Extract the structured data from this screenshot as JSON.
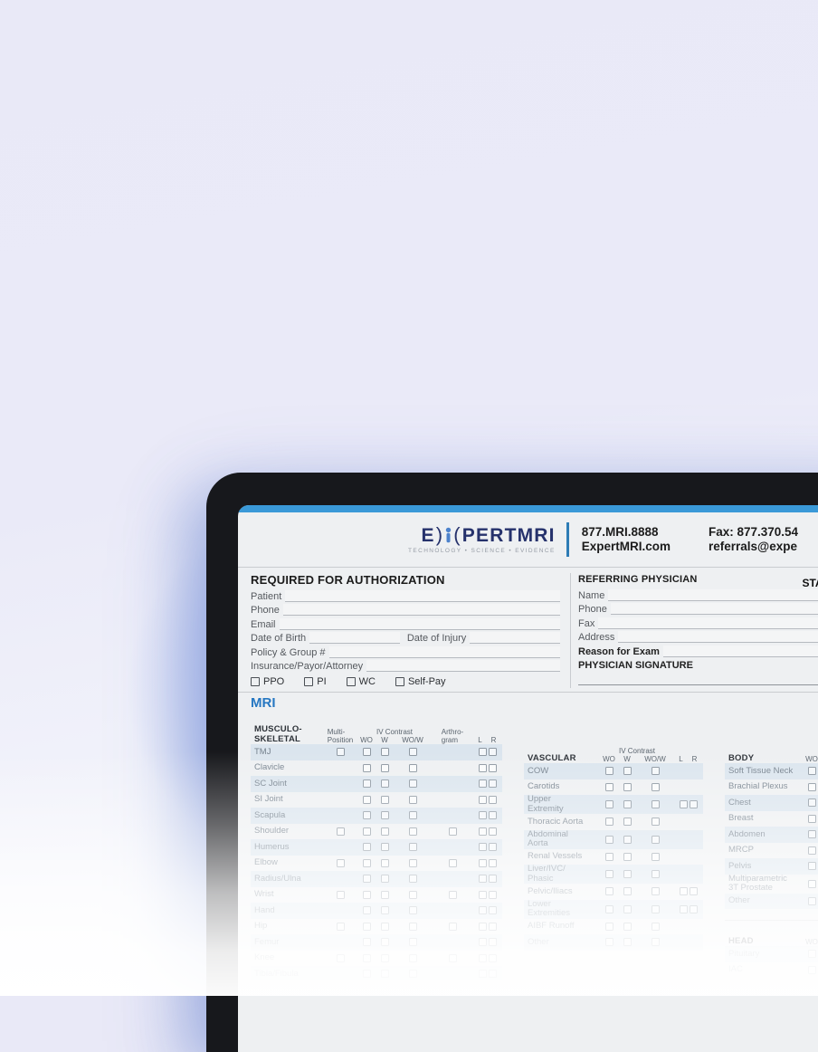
{
  "colors": {
    "top_bar": "#3a99d8",
    "brand_navy": "#26326c",
    "mri_blue": "#2677c2",
    "stripe": "#dbe5ee"
  },
  "header": {
    "logo_text_start": "E",
    "logo_paren_left": ")",
    "logo_paren_right": "(",
    "logo_text_end": "PERTMRI",
    "tagline": "TECHNOLOGY • SCIENCE • EVIDENCE",
    "phone": "877.MRI.8888",
    "website": "ExpertMRI.com",
    "fax": "Fax: 877.370.54",
    "email": "referrals@expe"
  },
  "authorization": {
    "title": "REQUIRED FOR AUTHORIZATION",
    "field_patient": "Patient",
    "field_phone": "Phone",
    "field_email": "Email",
    "field_dob": "Date of Birth",
    "field_doi": "Date of Injury",
    "field_policy": "Policy & Group #",
    "field_insurance": "Insurance/Payor/Attorney",
    "options": [
      "PPO",
      "PI",
      "WC",
      "Self-Pay"
    ]
  },
  "physician": {
    "title": "REFERRING PHYSICIAN",
    "stat": "STAT",
    "field_name": "Name",
    "field_phone": "Phone",
    "field_fax": "Fax",
    "field_address": "Address",
    "reason": "Reason for Exam",
    "signature": "PHYSICIAN SIGNATURE"
  },
  "mri": {
    "heading": "MRI",
    "musculoskeletal": {
      "title": "MUSCULO-\nSKELETAL",
      "iv_contrast": "IV Contrast",
      "col_mp": "Multi-\nPosition",
      "col_wo": "WO",
      "col_w": "W",
      "col_wow": "WO/W",
      "col_arthro": "Arthro-\ngram",
      "col_l": "L",
      "col_r": "R",
      "rows": [
        {
          "label": "TMJ",
          "checks": [
            "mp",
            "wo",
            "w",
            "wow",
            "lr"
          ]
        },
        {
          "label": "Clavicle",
          "checks": [
            "wo",
            "w",
            "wow",
            "lr"
          ]
        },
        {
          "label": "SC Joint",
          "checks": [
            "wo",
            "w",
            "wow",
            "lr"
          ]
        },
        {
          "label": "SI Joint",
          "checks": [
            "wo",
            "w",
            "wow",
            "lr"
          ]
        },
        {
          "label": "Scapula",
          "checks": [
            "wo",
            "w",
            "wow",
            "lr"
          ]
        },
        {
          "label": "Shoulder",
          "checks": [
            "mp",
            "wo",
            "w",
            "wow",
            "arthro",
            "lr"
          ]
        },
        {
          "label": "Humerus",
          "checks": [
            "wo",
            "w",
            "wow",
            "lr"
          ]
        },
        {
          "label": "Elbow",
          "checks": [
            "mp",
            "wo",
            "w",
            "wow",
            "arthro",
            "lr"
          ]
        },
        {
          "label": "Radius/Ulna",
          "checks": [
            "wo",
            "w",
            "wow",
            "lr"
          ]
        },
        {
          "label": "Wrist",
          "checks": [
            "mp",
            "wo",
            "w",
            "wow",
            "arthro",
            "lr"
          ]
        },
        {
          "label": "Hand",
          "checks": [
            "wo",
            "w",
            "wow",
            "lr"
          ]
        },
        {
          "label": "Hip",
          "checks": [
            "mp",
            "wo",
            "w",
            "wow",
            "arthro",
            "lr"
          ]
        },
        {
          "label": "Femur",
          "checks": [
            "wo",
            "w",
            "wow",
            "lr"
          ]
        },
        {
          "label": "Knee",
          "checks": [
            "mp",
            "wo",
            "w",
            "wow",
            "arthro",
            "lr"
          ]
        },
        {
          "label": "Tibia/Fibula",
          "checks": [
            "wo",
            "w",
            "wow",
            "lr"
          ]
        }
      ]
    },
    "vascular": {
      "title": "VASCULAR",
      "iv_contrast": "IV Contrast",
      "col_wo": "WO",
      "col_w": "W",
      "col_wow": "WO/W",
      "col_l": "L",
      "col_r": "R",
      "rows": [
        {
          "label": "COW",
          "checks": [
            "wo",
            "w",
            "wow"
          ]
        },
        {
          "label": "Carotids",
          "checks": [
            "wo",
            "w",
            "wow"
          ]
        },
        {
          "label": "Upper\nExtremity",
          "checks": [
            "wo",
            "w",
            "wow",
            "lr"
          ]
        },
        {
          "label": "Thoracic Aorta",
          "checks": [
            "wo",
            "w",
            "wow"
          ]
        },
        {
          "label": "Abdominal\nAorta",
          "checks": [
            "wo",
            "w",
            "wow"
          ]
        },
        {
          "label": "Renal Vessels",
          "checks": [
            "wo",
            "w",
            "wow"
          ]
        },
        {
          "label": "Liver/IVC/\nPhasic",
          "checks": [
            "wo",
            "w",
            "wow"
          ]
        },
        {
          "label": "Pelvic/Iliacs",
          "checks": [
            "wo",
            "w",
            "wow",
            "lr"
          ]
        },
        {
          "label": "Lower\nExtremities",
          "checks": [
            "wo",
            "w",
            "wow",
            "lr"
          ]
        },
        {
          "label": "AIBF Runoff",
          "checks": [
            "wo",
            "w",
            "wow"
          ]
        },
        {
          "label": "Other",
          "checks": [
            "wo",
            "w",
            "wow"
          ]
        }
      ]
    },
    "body": {
      "title": "BODY",
      "col_wo": "WO",
      "rows": [
        {
          "label": "Soft Tissue Neck",
          "checks": [
            "wo"
          ]
        },
        {
          "label": "Brachial Plexus",
          "checks": [
            "wo"
          ]
        },
        {
          "label": "Chest",
          "checks": [
            "wo"
          ]
        },
        {
          "label": "Breast",
          "checks": [
            "wo"
          ]
        },
        {
          "label": "Abdomen",
          "checks": [
            "wo"
          ]
        },
        {
          "label": "MRCP",
          "checks": [
            "wo"
          ]
        },
        {
          "label": "Pelvis",
          "checks": [
            "wo"
          ]
        },
        {
          "label": "Multiparametric\n3T Prostate",
          "checks": [
            "wo"
          ]
        },
        {
          "label": "Other",
          "checks": [
            "wo"
          ]
        }
      ]
    },
    "head": {
      "title": "HEAD",
      "col_wo": "WO",
      "rows": [
        {
          "label": "Pituitary",
          "checks": [
            "wo"
          ]
        },
        {
          "label": "IAC",
          "checks": [
            "wo"
          ]
        }
      ]
    }
  }
}
